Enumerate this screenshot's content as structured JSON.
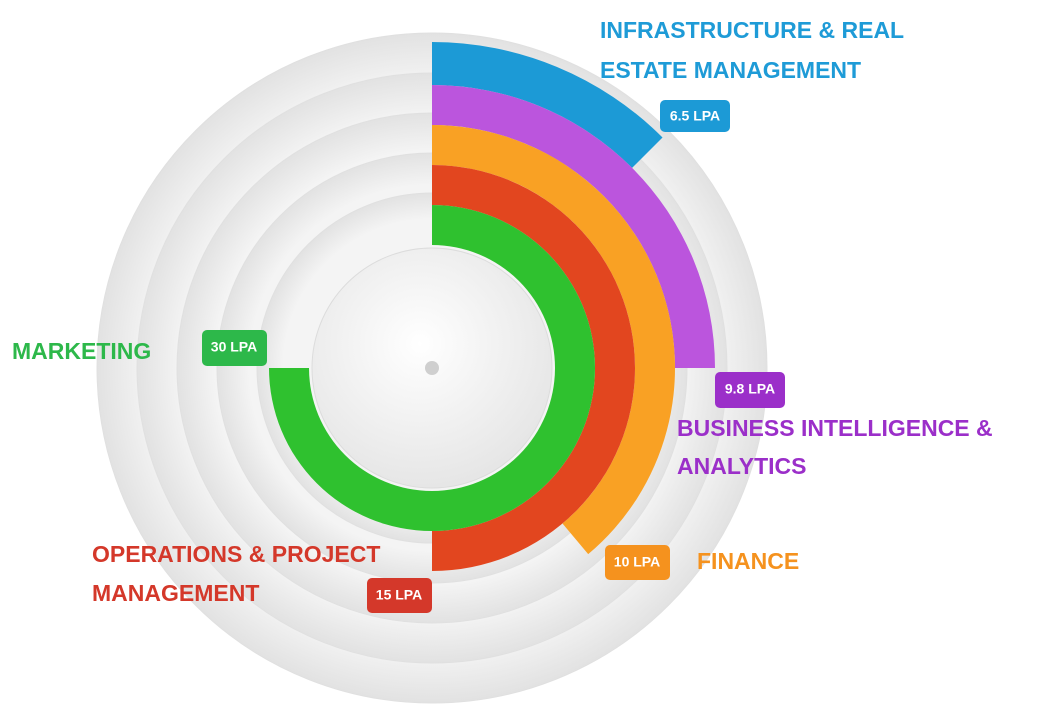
{
  "segments": [
    {
      "label_lines": [
        "INFRASTRUCTURE & REAL",
        "ESTATE MANAGEMENT"
      ],
      "value_label": "6.5 LPA"
    },
    {
      "label_lines": [
        "BUSINESS INTELLIGENCE &",
        "ANALYTICS"
      ],
      "value_label": "9.8 LPA"
    },
    {
      "label_lines": [
        "FINANCE"
      ],
      "value_label": "10 LPA"
    },
    {
      "label_lines": [
        "OPERATIONS & PROJECT",
        "MANAGEMENT"
      ],
      "value_label": "15 LPA"
    },
    {
      "label_lines": [
        "MARKETING"
      ],
      "value_label": "30 LPA"
    }
  ]
}
